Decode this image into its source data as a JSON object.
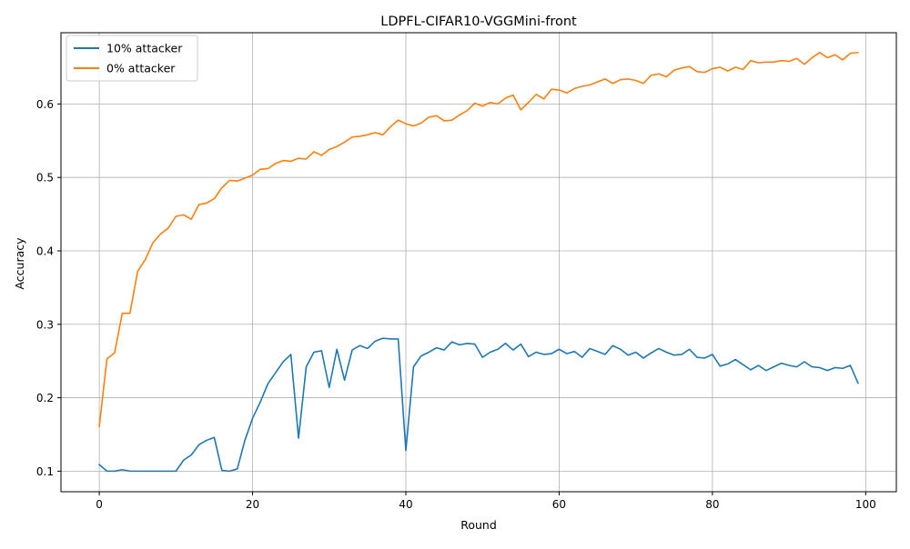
{
  "chart_data": {
    "type": "line",
    "title": "LDPFL-CIFAR10-VGGMini-front",
    "xlabel": "Round",
    "ylabel": "Accuracy",
    "xlim": [
      -5,
      104
    ],
    "ylim": [
      0.072,
      0.697
    ],
    "xticks": [
      0,
      20,
      40,
      60,
      80,
      100
    ],
    "xtick_labels": [
      "0",
      "20",
      "40",
      "60",
      "80",
      "100"
    ],
    "yticks": [
      0.1,
      0.2,
      0.3,
      0.4,
      0.5,
      0.6
    ],
    "ytick_labels": [
      "0.1",
      "0.2",
      "0.3",
      "0.4",
      "0.5",
      "0.6"
    ],
    "grid": true,
    "legend_position": "top-left",
    "series": [
      {
        "name": "10% attacker",
        "color": "#1f77b4",
        "values": [
          0.109,
          0.1,
          0.1,
          0.102,
          0.1,
          0.1,
          0.1,
          0.1,
          0.1,
          0.1,
          0.1,
          0.115,
          0.122,
          0.136,
          0.142,
          0.146,
          0.101,
          0.1,
          0.103,
          0.142,
          0.172,
          0.194,
          0.219,
          0.234,
          0.249,
          0.259,
          0.145,
          0.242,
          0.262,
          0.264,
          0.214,
          0.266,
          0.224,
          0.265,
          0.271,
          0.267,
          0.277,
          0.281,
          0.28,
          0.28,
          0.128,
          0.242,
          0.257,
          0.262,
          0.268,
          0.265,
          0.276,
          0.272,
          0.274,
          0.273,
          0.255,
          0.262,
          0.266,
          0.274,
          0.265,
          0.273,
          0.256,
          0.262,
          0.259,
          0.26,
          0.266,
          0.26,
          0.263,
          0.255,
          0.267,
          0.263,
          0.259,
          0.271,
          0.266,
          0.258,
          0.262,
          0.254,
          0.261,
          0.267,
          0.262,
          0.258,
          0.259,
          0.266,
          0.255,
          0.254,
          0.259,
          0.243,
          0.246,
          0.252,
          0.245,
          0.238,
          0.244,
          0.237,
          0.242,
          0.247,
          0.244,
          0.242,
          0.249,
          0.242,
          0.241,
          0.237,
          0.241,
          0.24,
          0.244,
          0.22
        ]
      },
      {
        "name": "0% attacker",
        "color": "#ff7f0e",
        "values": [
          0.161,
          0.253,
          0.261,
          0.315,
          0.315,
          0.372,
          0.388,
          0.411,
          0.423,
          0.431,
          0.447,
          0.449,
          0.443,
          0.463,
          0.465,
          0.471,
          0.486,
          0.496,
          0.495,
          0.499,
          0.503,
          0.511,
          0.512,
          0.519,
          0.523,
          0.522,
          0.526,
          0.525,
          0.535,
          0.53,
          0.538,
          0.542,
          0.548,
          0.555,
          0.556,
          0.558,
          0.561,
          0.558,
          0.569,
          0.578,
          0.573,
          0.57,
          0.574,
          0.582,
          0.584,
          0.577,
          0.578,
          0.585,
          0.591,
          0.601,
          0.597,
          0.602,
          0.6,
          0.608,
          0.612,
          0.592,
          0.602,
          0.613,
          0.607,
          0.62,
          0.619,
          0.615,
          0.621,
          0.624,
          0.626,
          0.63,
          0.634,
          0.628,
          0.633,
          0.634,
          0.632,
          0.628,
          0.639,
          0.641,
          0.637,
          0.646,
          0.649,
          0.651,
          0.644,
          0.643,
          0.648,
          0.65,
          0.645,
          0.65,
          0.647,
          0.659,
          0.656,
          0.657,
          0.657,
          0.659,
          0.658,
          0.662,
          0.654,
          0.663,
          0.67,
          0.663,
          0.667,
          0.66,
          0.669,
          0.67
        ]
      }
    ]
  }
}
